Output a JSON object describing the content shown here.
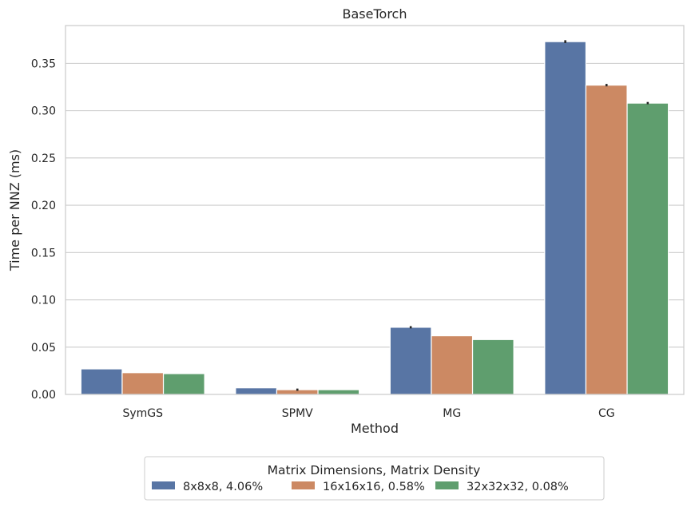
{
  "chart_data": {
    "type": "bar",
    "title": "BaseTorch",
    "xlabel": "Method",
    "ylabel": "Time per NNZ (ms)",
    "categories": [
      "SymGS",
      "SPMV",
      "MG",
      "CG"
    ],
    "ylim": [
      0,
      0.39
    ],
    "yticks": [
      0.0,
      0.05,
      0.1,
      0.15,
      0.2,
      0.25,
      0.3,
      0.35
    ],
    "ytick_labels": [
      "0.00",
      "0.05",
      "0.10",
      "0.15",
      "0.20",
      "0.25",
      "0.30",
      "0.35"
    ],
    "grid": "horizontal",
    "legend": {
      "title": "Matrix Dimensions, Matrix Density",
      "placement": "below plot, center"
    },
    "series": [
      {
        "name": "8x8x8, 4.06%",
        "color": "#5875a4",
        "values": [
          0.027,
          0.007,
          0.071,
          0.373
        ],
        "errors": [
          0.0,
          0.0,
          0.0012,
          0.0015
        ]
      },
      {
        "name": "16x16x16, 0.58%",
        "color": "#cc8963",
        "values": [
          0.023,
          0.005,
          0.062,
          0.327
        ],
        "errors": [
          0.0,
          0.0012,
          0.0,
          0.0013
        ]
      },
      {
        "name": "32x32x32, 0.08%",
        "color": "#5f9e6e",
        "values": [
          0.022,
          0.005,
          0.058,
          0.308
        ],
        "errors": [
          0.0,
          0.0,
          0.0,
          0.0012
        ]
      }
    ]
  }
}
